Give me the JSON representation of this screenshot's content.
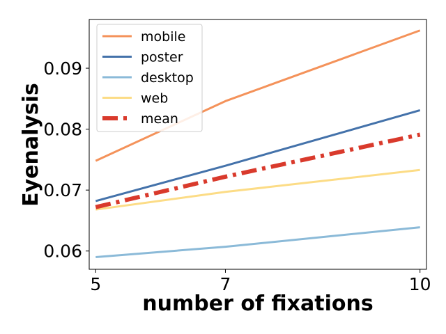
{
  "chart_data": {
    "type": "line",
    "title": "",
    "xlabel": "number of fixations",
    "ylabel": "Eyenalysis",
    "x": [
      5,
      7,
      10
    ],
    "xticks": [
      "5",
      "7",
      "10"
    ],
    "yticks": [
      "0.06",
      "0.07",
      "0.08",
      "0.09"
    ],
    "xlim": [
      4.9,
      10.1
    ],
    "ylim": [
      0.057,
      0.098
    ],
    "grid": false,
    "legend_position": "top-left",
    "series": [
      {
        "name": "mobile",
        "values": [
          0.0748,
          0.0846,
          0.0962
        ],
        "color": "#f4925a",
        "style": "solid"
      },
      {
        "name": "poster",
        "values": [
          0.0682,
          0.074,
          0.0831
        ],
        "color": "#4472aa",
        "style": "solid"
      },
      {
        "name": "desktop",
        "values": [
          0.059,
          0.0607,
          0.0639
        ],
        "color": "#8bbad8",
        "style": "solid"
      },
      {
        "name": "web",
        "values": [
          0.0668,
          0.0697,
          0.0733
        ],
        "color": "#fcdc86",
        "style": "solid"
      },
      {
        "name": "mean",
        "values": [
          0.0672,
          0.0722,
          0.0791
        ],
        "color": "#d93a2c",
        "style": "dashdot"
      }
    ]
  }
}
